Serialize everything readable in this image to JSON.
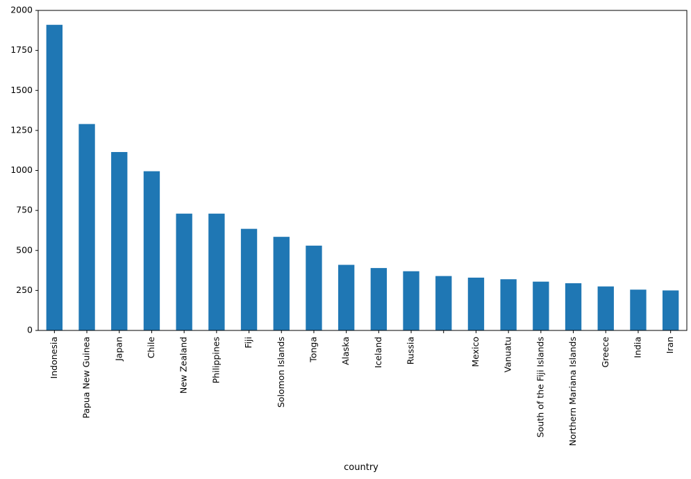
{
  "chart_data": {
    "type": "bar",
    "xlabel": "country",
    "ylabel": "",
    "ylim": [
      0,
      2000
    ],
    "yticks": [
      0,
      250,
      500,
      750,
      1000,
      1250,
      1500,
      1750,
      2000
    ],
    "ytick_labels": [
      "0",
      "250",
      "500",
      "750",
      "1000",
      "1250",
      "1500",
      "1750",
      "2000"
    ],
    "grid": false,
    "bar_color": "#1f77b4",
    "categories": [
      "Indonesia",
      "Papua New Guinea",
      "Japan",
      "Chile",
      "New Zealand",
      "Philippines",
      "Fiji",
      "Solomon Islands",
      "Tonga",
      "Alaska",
      "Iceland",
      "Russia",
      "",
      "Mexico",
      "Vanuatu",
      "South of the Fiji Islands",
      "Northern Mariana Islands",
      "Greece",
      "India",
      "Iran"
    ],
    "values": [
      1910,
      1290,
      1115,
      995,
      730,
      730,
      635,
      585,
      530,
      410,
      390,
      370,
      340,
      330,
      320,
      305,
      295,
      275,
      255,
      250
    ]
  }
}
